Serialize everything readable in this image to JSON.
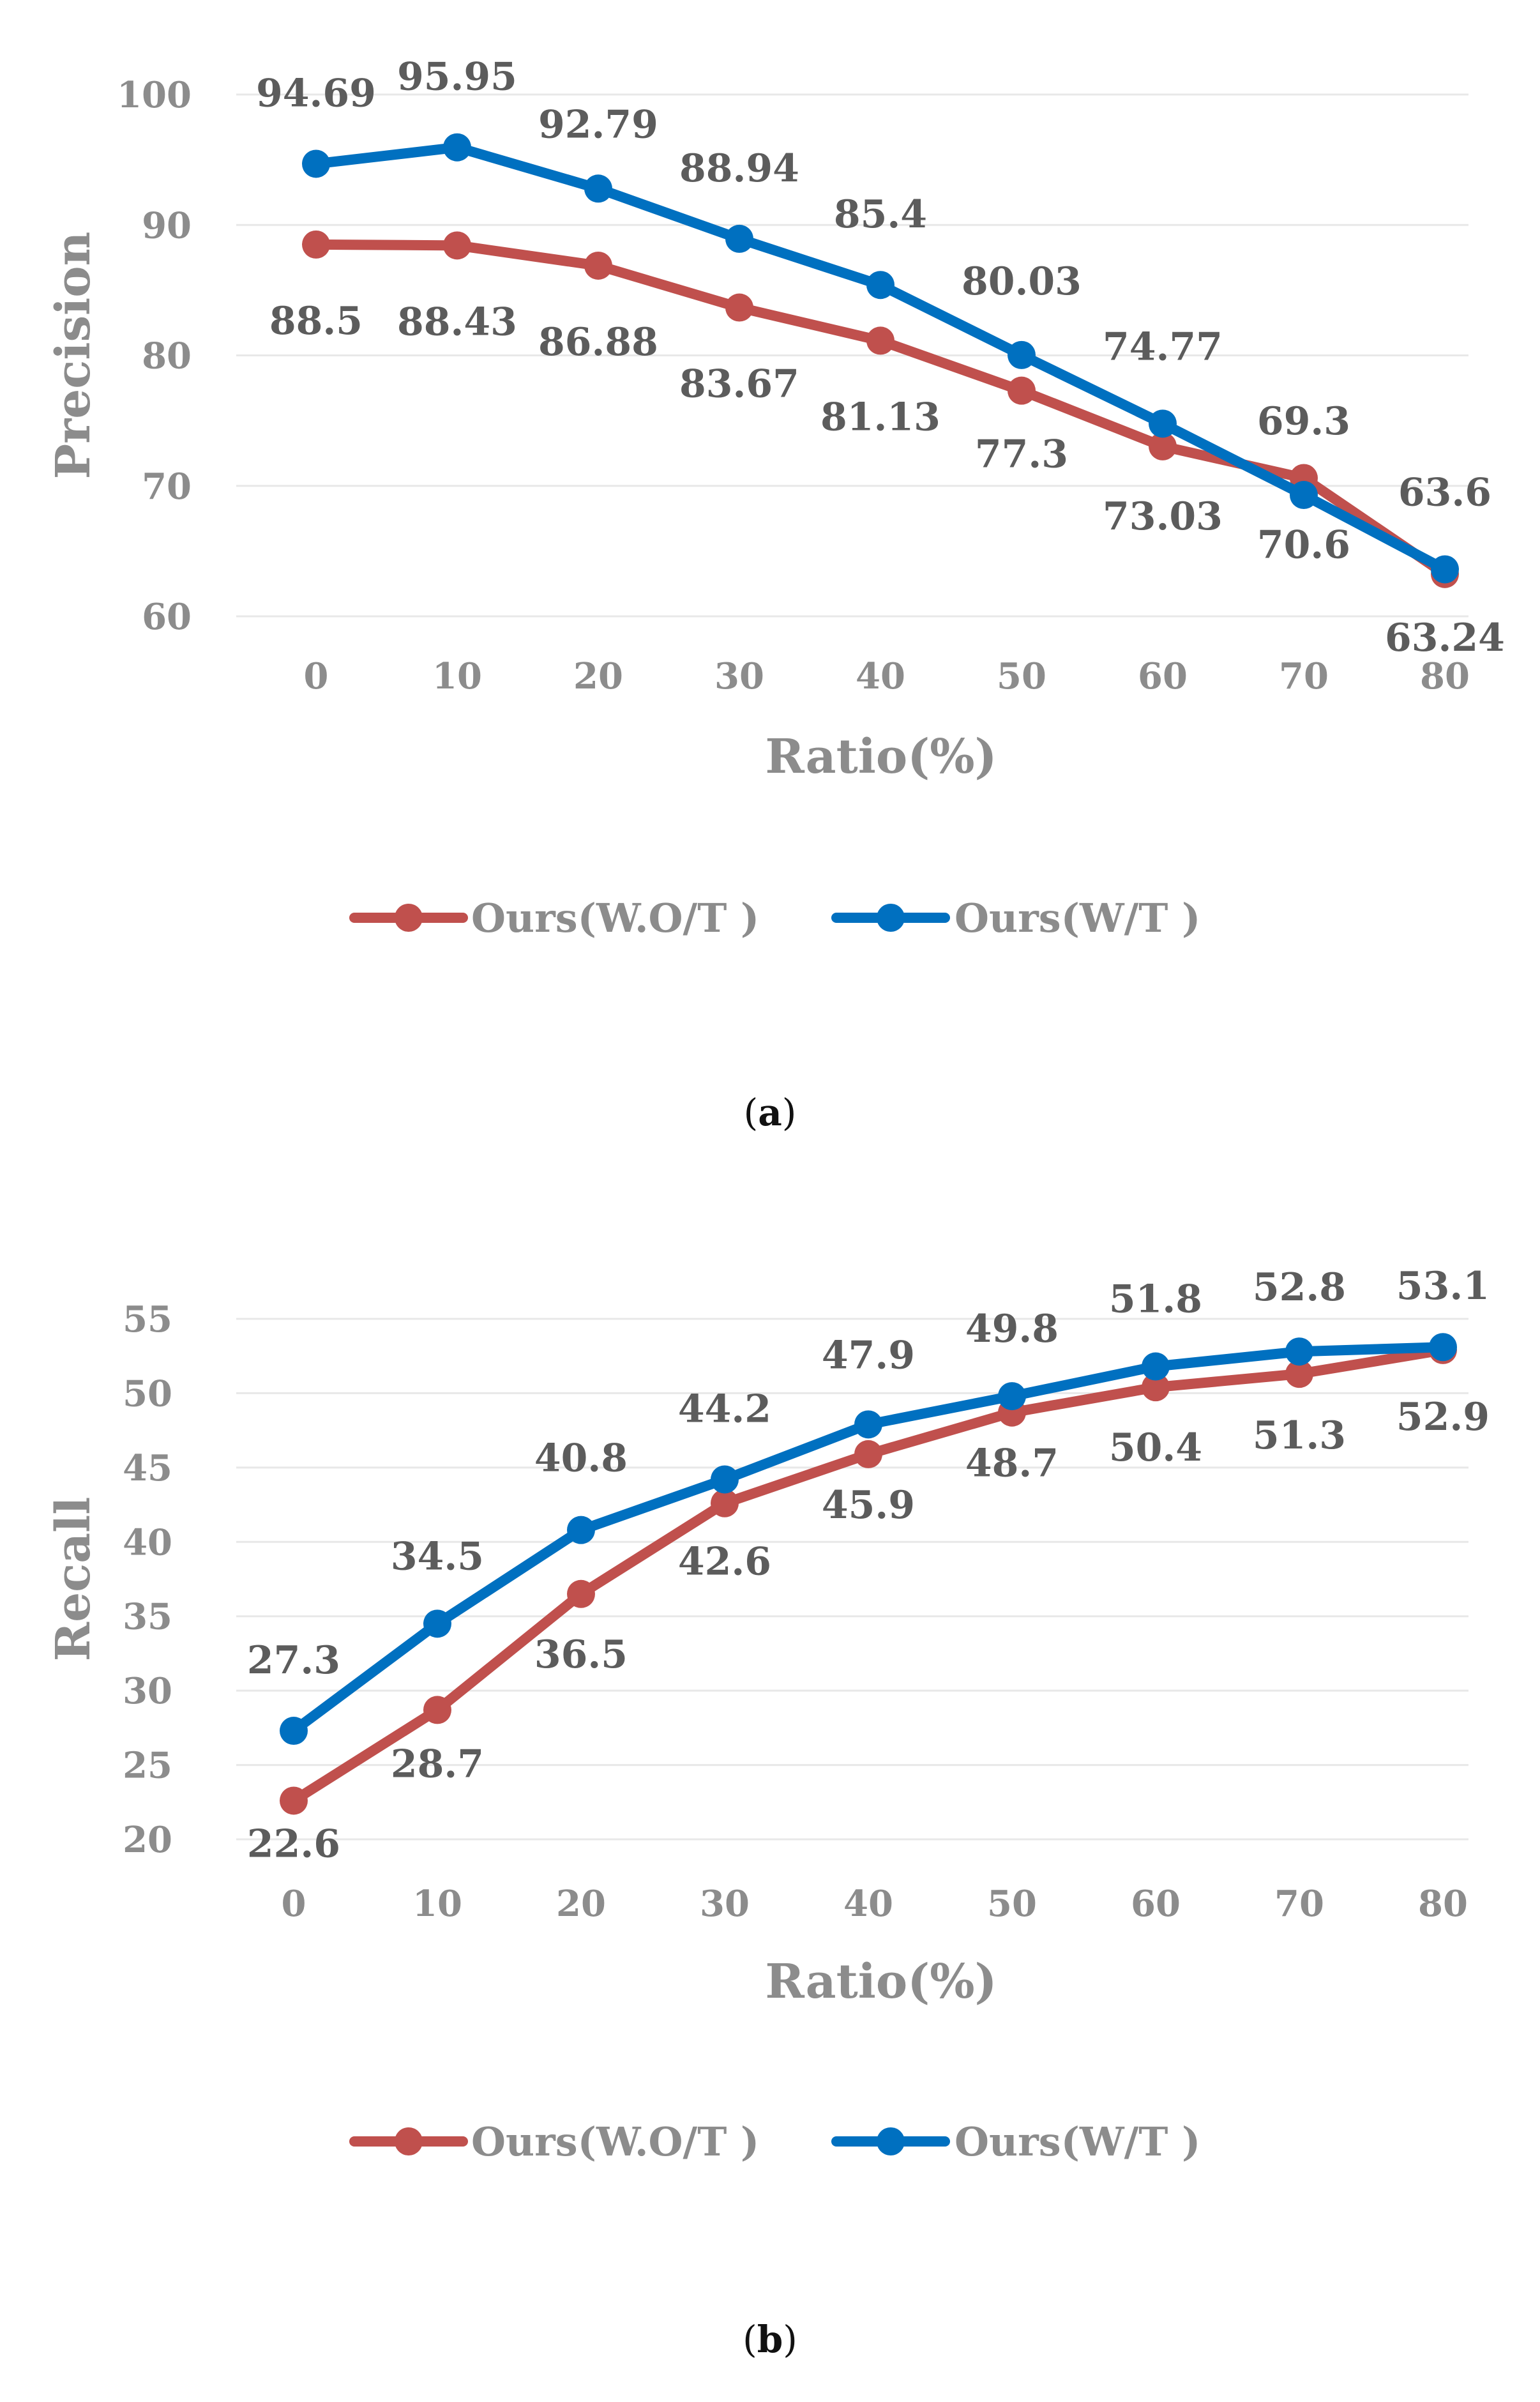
{
  "chart_data": [
    {
      "type": "line",
      "caption_letter": "a",
      "title": "",
      "xlabel": "Ratio(%)",
      "ylabel": "Precision",
      "x": [
        0,
        10,
        20,
        30,
        40,
        50,
        60,
        70,
        80
      ],
      "yticks": [
        60,
        70,
        80,
        90,
        100
      ],
      "ylim": [
        60,
        100
      ],
      "grid": true,
      "legend_position": "bottom",
      "series": [
        {
          "name": "Ours(W.O/T )",
          "color": "#c0504d",
          "values": [
            88.5,
            88.43,
            86.88,
            83.67,
            81.13,
            77.3,
            73.03,
            70.6,
            63.24
          ],
          "labels": [
            "88.5",
            "88.43",
            "86.88",
            "83.67",
            "81.13",
            "77.3",
            "73.03",
            "70.6",
            "63.24"
          ]
        },
        {
          "name": "Ours(W/T )",
          "color": "#0070c0",
          "values": [
            94.69,
            95.95,
            92.79,
            88.94,
            85.4,
            80.03,
            74.77,
            69.3,
            63.6
          ],
          "labels": [
            "94.69",
            "95.95",
            "92.79",
            "88.94",
            "85.4",
            "80.03",
            "74.77",
            "69.3",
            "63.6"
          ]
        }
      ]
    },
    {
      "type": "line",
      "caption_letter": "b",
      "title": "",
      "xlabel": "Ratio(%)",
      "ylabel": "Recall",
      "x": [
        0,
        10,
        20,
        30,
        40,
        50,
        60,
        70,
        80
      ],
      "yticks": [
        20,
        25,
        30,
        35,
        40,
        45,
        50,
        55
      ],
      "ylim": [
        20,
        55
      ],
      "grid": true,
      "legend_position": "bottom",
      "series": [
        {
          "name": "Ours(W.O/T )",
          "color": "#c0504d",
          "values": [
            22.6,
            28.7,
            36.5,
            42.6,
            45.9,
            48.7,
            50.4,
            51.3,
            52.9
          ],
          "labels": [
            "22.6",
            "28.7",
            "36.5",
            "42.6",
            "45.9",
            "48.7",
            "50.4",
            "51.3",
            "52.9"
          ]
        },
        {
          "name": "Ours(W/T )",
          "color": "#0070c0",
          "values": [
            27.3,
            34.5,
            40.8,
            44.2,
            47.9,
            49.8,
            51.8,
            52.8,
            53.1
          ],
          "labels": [
            "27.3",
            "34.5",
            "40.8",
            "44.2",
            "47.9",
            "49.8",
            "51.8",
            "52.8",
            "53.1"
          ]
        }
      ]
    }
  ]
}
